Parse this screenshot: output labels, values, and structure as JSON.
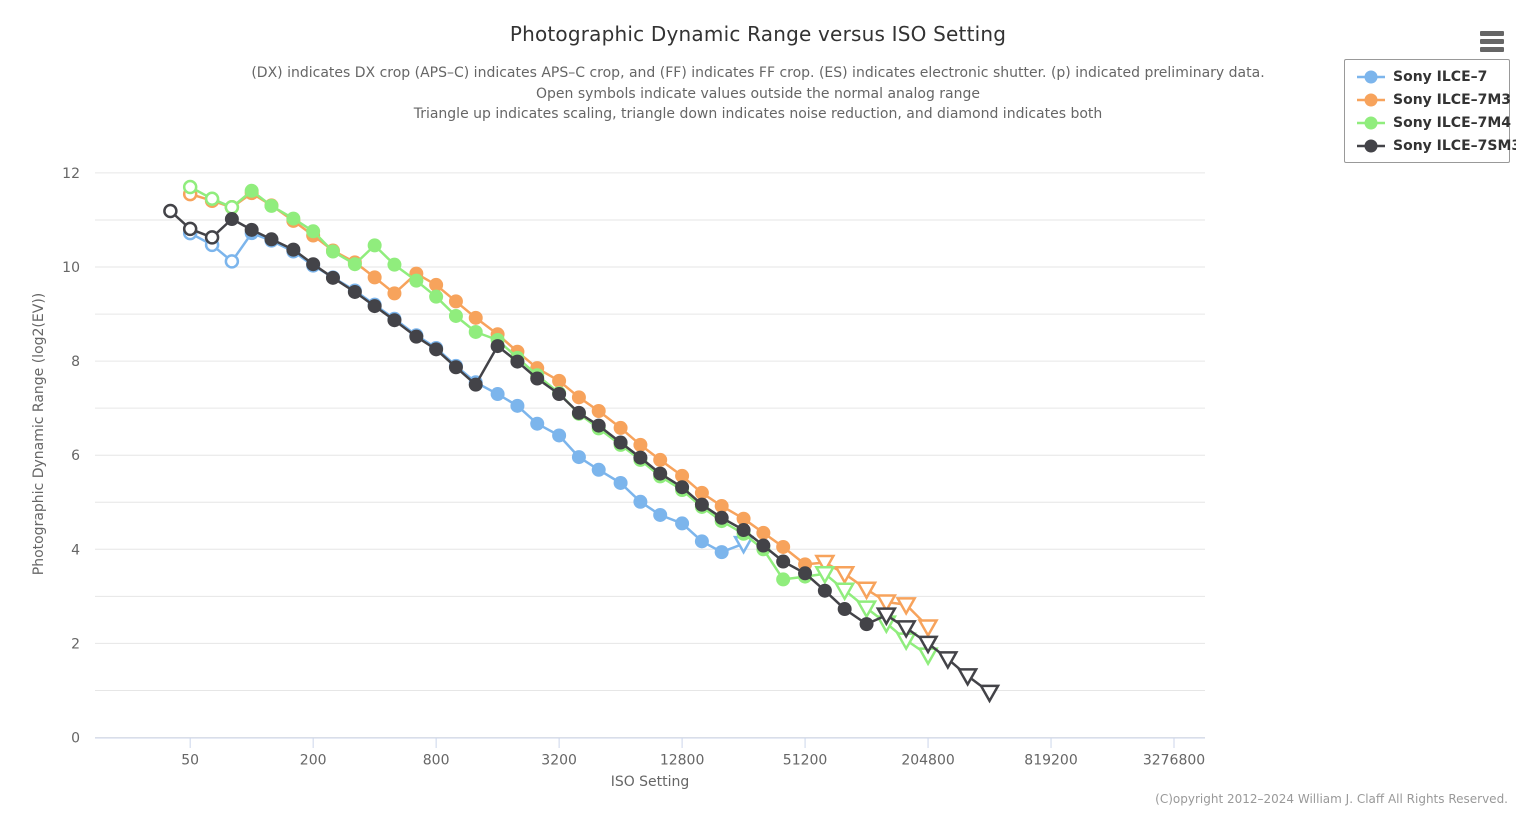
{
  "header": {
    "title": "Photographic Dynamic Range versus ISO Setting",
    "subtitle_lines": [
      "(DX) indicates DX crop (APS–C) indicates APS–C crop, and (FF) indicates FF crop. (ES) indicates electronic shutter. (p) indicated preliminary data.",
      "Open symbols indicate values outside the normal analog range",
      "Triangle up indicates scaling, triangle down indicates noise reduction, and diamond indicates both"
    ]
  },
  "legend": {
    "items": [
      {
        "label": "Sony ILCE–7",
        "color": "#7cb5ec"
      },
      {
        "label": "Sony ILCE–7M3",
        "color": "#f7a35c"
      },
      {
        "label": "Sony ILCE–7M4",
        "color": "#90ed7d"
      },
      {
        "label": "Sony ILCE–7SM3",
        "color": "#434348"
      }
    ]
  },
  "footer": {
    "copyright": "(C)opyright 2012–2024 William J. Claff All Rights Reserved."
  },
  "icons": {
    "menu": "hamburger-icon"
  },
  "style_colors": {
    "grid": "#e6e6e6",
    "axis_line": "#ccd6eb",
    "tick_label": "#666666",
    "title": "#333333",
    "subtitle": "#666666",
    "credits": "#999999"
  },
  "chart_data": {
    "type": "line",
    "title": "Photographic Dynamic Range versus ISO Setting",
    "xlabel": "ISO Setting",
    "ylabel": "Photographic Dynamic Range (log2(EV))",
    "x_scale": "log2",
    "grid": true,
    "legend_position": "top-right",
    "xlim": [
      17.1,
      4647000
    ],
    "ylim": [
      0,
      12.7
    ],
    "x_ticks": [
      50,
      200,
      800,
      3200,
      12800,
      51200,
      204800,
      819200,
      3276800
    ],
    "y_ticks": [
      0,
      2,
      4,
      6,
      8,
      10,
      12
    ],
    "y_grid_step": 1,
    "symbols_key": {
      "c": "solid circle (normal analog range)",
      "o": "open circle (outside normal analog range)",
      "td": "open triangle down (noise reduction)"
    },
    "series": [
      {
        "name": "Sony ILCE–7",
        "color": "#7cb5ec",
        "points": [
          [
            50,
            10.72,
            "o"
          ],
          [
            64,
            10.47,
            "o"
          ],
          [
            80,
            10.12,
            "o"
          ],
          [
            100,
            10.72,
            "c"
          ],
          [
            125,
            10.56,
            "c"
          ],
          [
            160,
            10.33,
            "c"
          ],
          [
            200,
            10.03,
            "c"
          ],
          [
            250,
            9.78,
            "c"
          ],
          [
            320,
            9.5,
            "c"
          ],
          [
            400,
            9.2,
            "c"
          ],
          [
            500,
            8.9,
            "c"
          ],
          [
            640,
            8.55,
            "c"
          ],
          [
            800,
            8.28,
            "c"
          ],
          [
            1000,
            7.9,
            "c"
          ],
          [
            1250,
            7.55,
            "c"
          ],
          [
            1600,
            7.3,
            "c"
          ],
          [
            2000,
            7.05,
            "c"
          ],
          [
            2500,
            6.67,
            "c"
          ],
          [
            3200,
            6.42,
            "c"
          ],
          [
            4000,
            5.96,
            "c"
          ],
          [
            5000,
            5.69,
            "c"
          ],
          [
            6400,
            5.41,
            "c"
          ],
          [
            8000,
            5.01,
            "c"
          ],
          [
            10000,
            4.73,
            "c"
          ],
          [
            12800,
            4.55,
            "c"
          ],
          [
            16000,
            4.17,
            "c"
          ],
          [
            20000,
            3.94,
            "c"
          ],
          [
            25600,
            4.12,
            "td"
          ]
        ]
      },
      {
        "name": "Sony ILCE–7M3",
        "color": "#f7a35c",
        "points": [
          [
            50,
            11.55,
            "o"
          ],
          [
            64,
            11.41,
            "o"
          ],
          [
            80,
            11.27,
            "o"
          ],
          [
            100,
            11.57,
            "c"
          ],
          [
            125,
            11.31,
            "c"
          ],
          [
            160,
            10.98,
            "c"
          ],
          [
            200,
            10.67,
            "c"
          ],
          [
            250,
            10.35,
            "c"
          ],
          [
            320,
            10.1,
            "c"
          ],
          [
            400,
            9.78,
            "c"
          ],
          [
            500,
            9.44,
            "c"
          ],
          [
            640,
            9.86,
            "c"
          ],
          [
            800,
            9.62,
            "c"
          ],
          [
            1000,
            9.27,
            "c"
          ],
          [
            1250,
            8.92,
            "c"
          ],
          [
            1600,
            8.57,
            "c"
          ],
          [
            2000,
            8.2,
            "c"
          ],
          [
            2500,
            7.85,
            "c"
          ],
          [
            3200,
            7.58,
            "c"
          ],
          [
            4000,
            7.23,
            "c"
          ],
          [
            5000,
            6.94,
            "c"
          ],
          [
            6400,
            6.58,
            "c"
          ],
          [
            8000,
            6.22,
            "c"
          ],
          [
            10000,
            5.9,
            "c"
          ],
          [
            12800,
            5.56,
            "c"
          ],
          [
            16000,
            5.2,
            "c"
          ],
          [
            20000,
            4.92,
            "c"
          ],
          [
            25600,
            4.65,
            "c"
          ],
          [
            32000,
            4.35,
            "c"
          ],
          [
            40000,
            4.05,
            "c"
          ],
          [
            51200,
            3.68,
            "c"
          ],
          [
            64000,
            3.72,
            "td"
          ],
          [
            80000,
            3.48,
            "td"
          ],
          [
            102400,
            3.15,
            "td"
          ],
          [
            128000,
            2.88,
            "td"
          ],
          [
            160000,
            2.82,
            "td"
          ],
          [
            204800,
            2.35,
            "td"
          ]
        ]
      },
      {
        "name": "Sony ILCE–7M4",
        "color": "#90ed7d",
        "points": [
          [
            50,
            11.7,
            "o"
          ],
          [
            64,
            11.45,
            "o"
          ],
          [
            80,
            11.27,
            "o"
          ],
          [
            100,
            11.62,
            "c"
          ],
          [
            125,
            11.3,
            "c"
          ],
          [
            160,
            11.03,
            "c"
          ],
          [
            200,
            10.76,
            "c"
          ],
          [
            250,
            10.33,
            "c"
          ],
          [
            320,
            10.06,
            "c"
          ],
          [
            400,
            10.46,
            "c"
          ],
          [
            500,
            10.05,
            "c"
          ],
          [
            640,
            9.71,
            "c"
          ],
          [
            800,
            9.37,
            "c"
          ],
          [
            1000,
            8.96,
            "c"
          ],
          [
            1250,
            8.62,
            "c"
          ],
          [
            1600,
            8.45,
            "c"
          ],
          [
            2000,
            8.07,
            "c"
          ],
          [
            2500,
            7.7,
            "c"
          ],
          [
            3200,
            7.32,
            "c"
          ],
          [
            4000,
            6.88,
            "c"
          ],
          [
            5000,
            6.57,
            "c"
          ],
          [
            6400,
            6.22,
            "c"
          ],
          [
            8000,
            5.9,
            "c"
          ],
          [
            10000,
            5.55,
            "c"
          ],
          [
            12800,
            5.26,
            "c"
          ],
          [
            16000,
            4.9,
            "c"
          ],
          [
            20000,
            4.6,
            "c"
          ],
          [
            25600,
            4.33,
            "c"
          ],
          [
            32000,
            4.0,
            "c"
          ],
          [
            40000,
            3.36,
            "c"
          ],
          [
            51200,
            3.42,
            "c"
          ],
          [
            64000,
            3.48,
            "td"
          ],
          [
            80000,
            3.13,
            "td"
          ],
          [
            102400,
            2.75,
            "td"
          ],
          [
            128000,
            2.43,
            "td"
          ],
          [
            160000,
            2.07,
            "td"
          ],
          [
            204800,
            1.75,
            "td"
          ]
        ]
      },
      {
        "name": "Sony ILCE–7SM3",
        "color": "#434348",
        "points": [
          [
            40,
            11.19,
            "o"
          ],
          [
            50,
            10.81,
            "o"
          ],
          [
            64,
            10.63,
            "o"
          ],
          [
            80,
            11.02,
            "c"
          ],
          [
            100,
            10.79,
            "c"
          ],
          [
            125,
            10.59,
            "c"
          ],
          [
            160,
            10.37,
            "c"
          ],
          [
            200,
            10.06,
            "c"
          ],
          [
            250,
            9.77,
            "c"
          ],
          [
            320,
            9.47,
            "c"
          ],
          [
            400,
            9.17,
            "c"
          ],
          [
            500,
            8.87,
            "c"
          ],
          [
            640,
            8.52,
            "c"
          ],
          [
            800,
            8.25,
            "c"
          ],
          [
            1000,
            7.87,
            "c"
          ],
          [
            1250,
            7.5,
            "c"
          ],
          [
            1600,
            8.32,
            "c"
          ],
          [
            2000,
            7.99,
            "c"
          ],
          [
            2500,
            7.63,
            "c"
          ],
          [
            3200,
            7.3,
            "c"
          ],
          [
            4000,
            6.9,
            "c"
          ],
          [
            5000,
            6.63,
            "c"
          ],
          [
            6400,
            6.27,
            "c"
          ],
          [
            8000,
            5.95,
            "c"
          ],
          [
            10000,
            5.61,
            "c"
          ],
          [
            12800,
            5.32,
            "c"
          ],
          [
            16000,
            4.95,
            "c"
          ],
          [
            20000,
            4.67,
            "c"
          ],
          [
            25600,
            4.41,
            "c"
          ],
          [
            32000,
            4.08,
            "c"
          ],
          [
            40000,
            3.74,
            "c"
          ],
          [
            51200,
            3.49,
            "c"
          ],
          [
            64000,
            3.12,
            "c"
          ],
          [
            80000,
            2.73,
            "c"
          ],
          [
            102400,
            2.41,
            "c"
          ],
          [
            128000,
            2.6,
            "td"
          ],
          [
            160000,
            2.33,
            "td"
          ],
          [
            204800,
            2.0,
            "td"
          ],
          [
            256000,
            1.67,
            "td"
          ],
          [
            320000,
            1.31,
            "td"
          ],
          [
            409600,
            0.96,
            "td"
          ]
        ]
      }
    ]
  }
}
